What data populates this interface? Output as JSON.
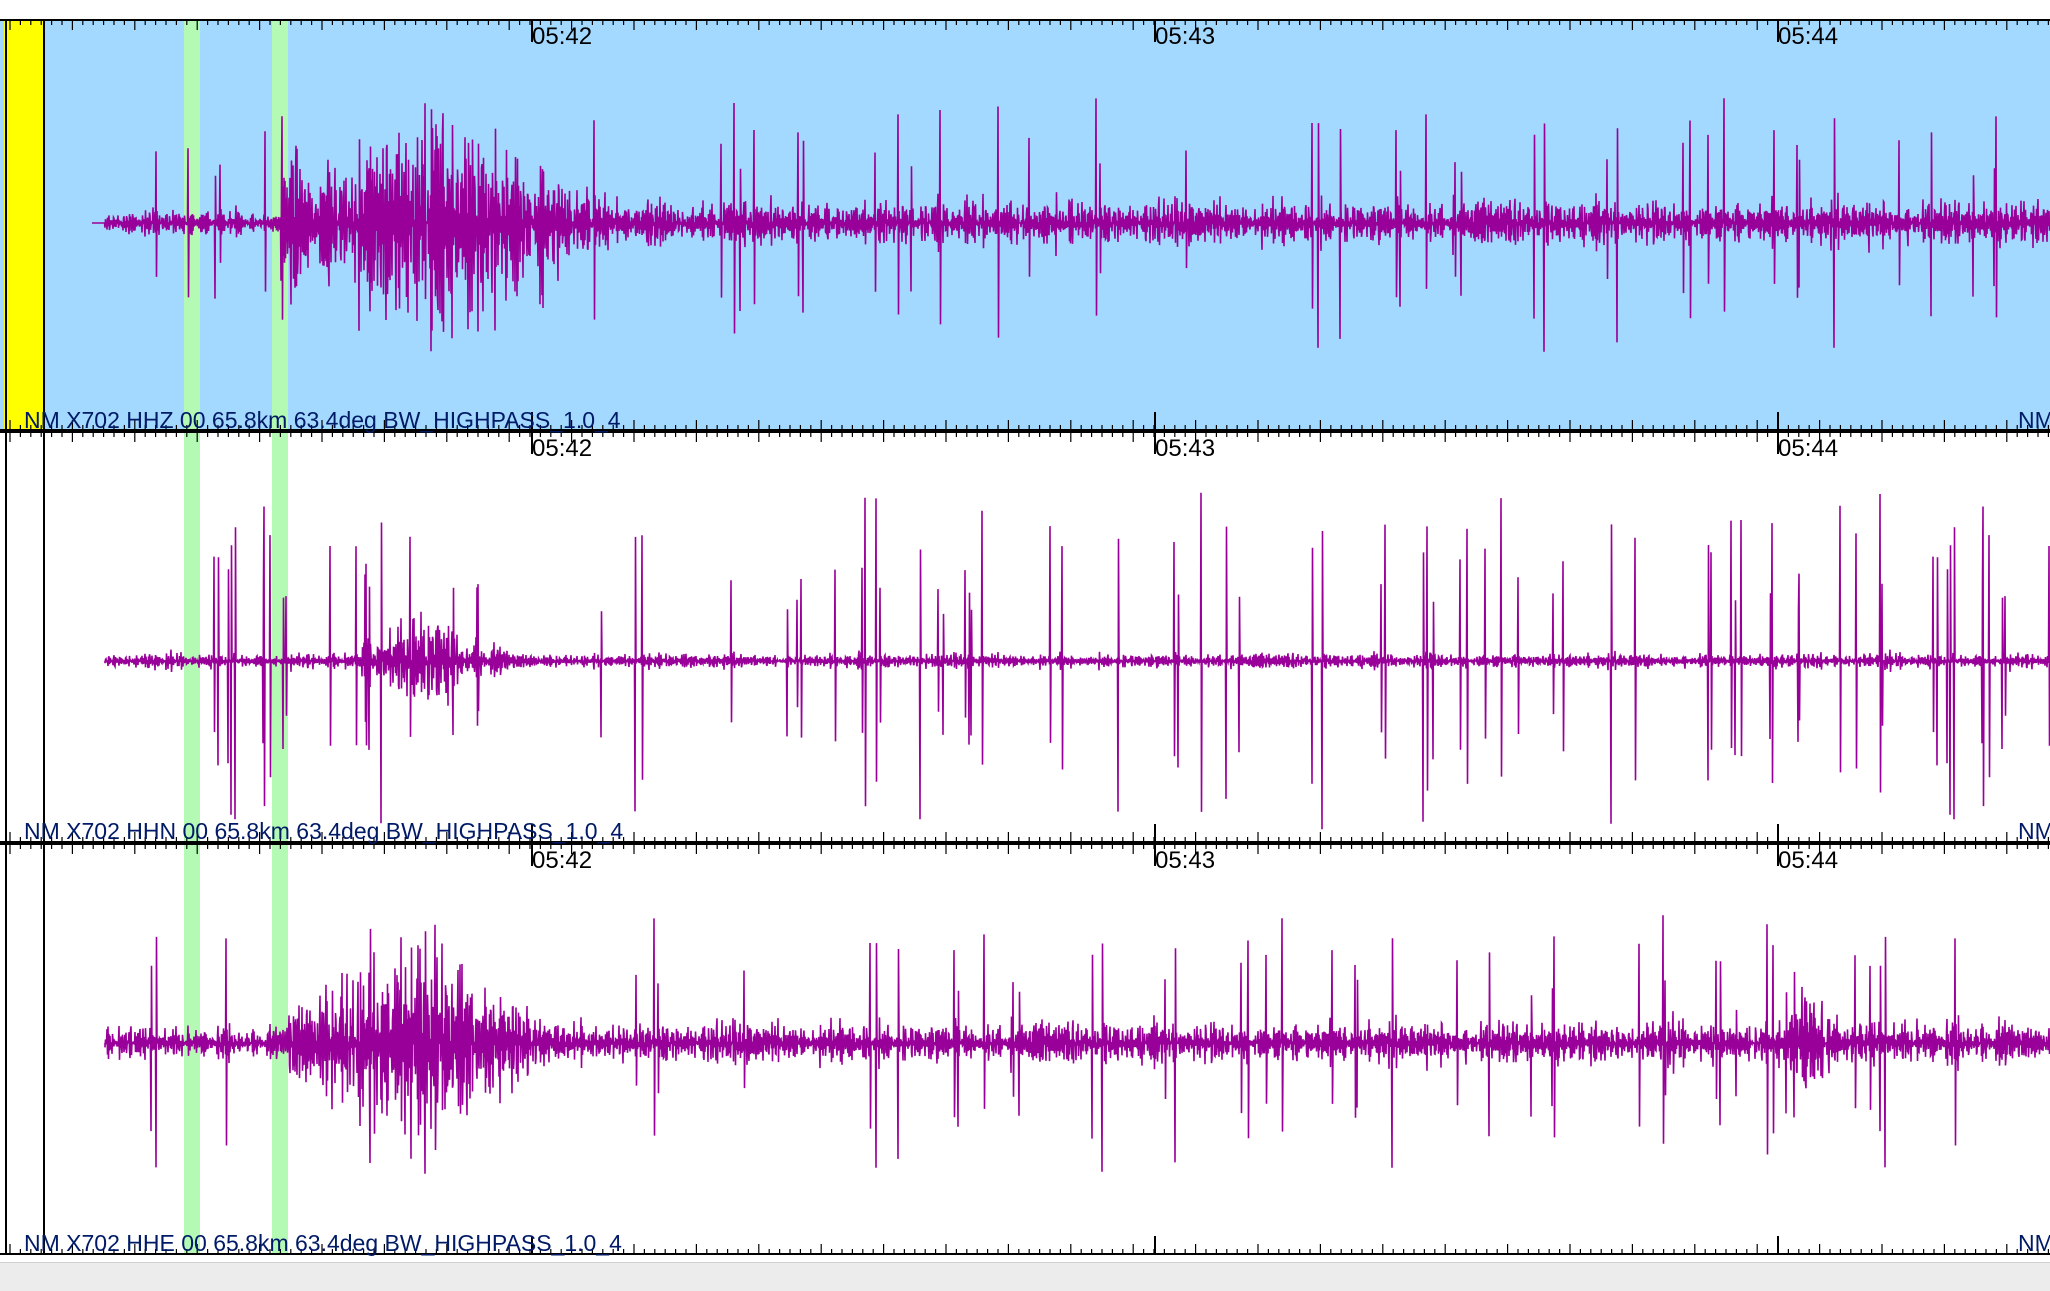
{
  "time_axis": {
    "tick_labels": [
      "05:42",
      "05:43",
      "05:44"
    ]
  },
  "colors": {
    "waveform": "#990099",
    "selected_trace_background": "#a3d8ff",
    "pick_marker": "#b4f9b4",
    "selection_bar": "#ffff00",
    "axis": "#000000"
  },
  "traces": [
    {
      "label": "NM X702 HHZ 00 65.8km 63.4deg BW_HIGHPASS_1.0_4",
      "right_label": "NM",
      "selected": true
    },
    {
      "label": "NM X702 HHN 00 65.8km 63.4deg BW_HIGHPASS_1.0_4",
      "right_label": "NM",
      "selected": false
    },
    {
      "label": "NM X702 HHE 00 65.8km 63.4deg BW_HIGHPASS_1.0_4",
      "right_label": "NM",
      "selected": false
    }
  ]
}
